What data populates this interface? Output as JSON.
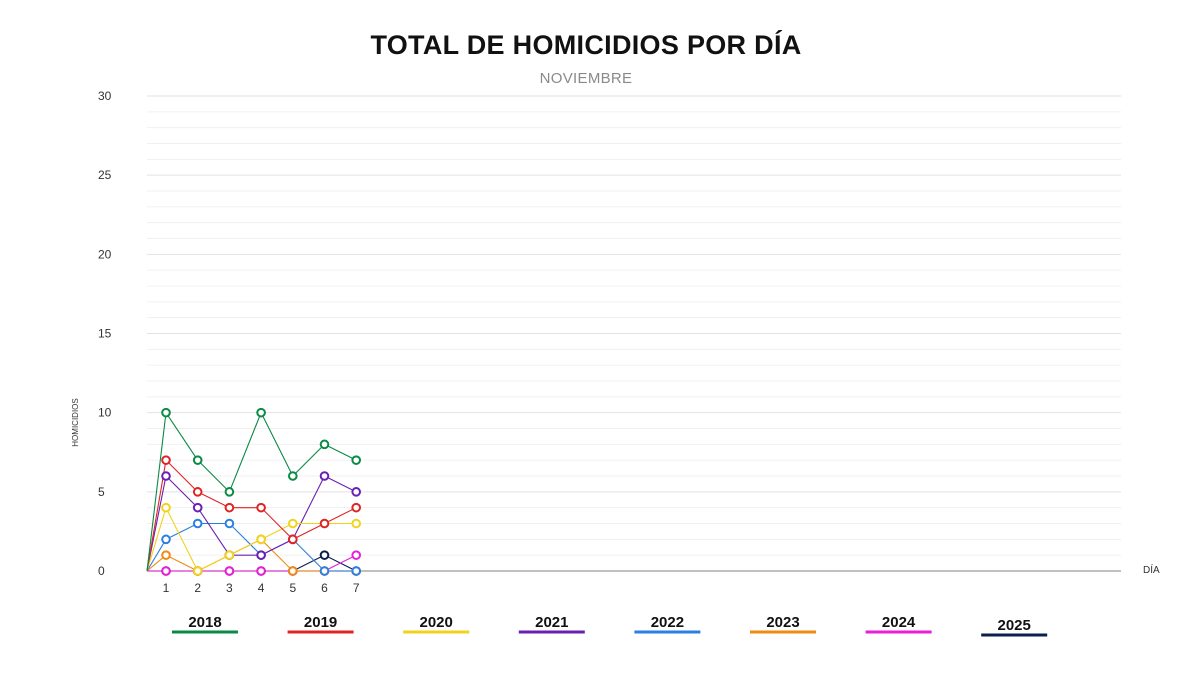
{
  "chart_data": {
    "type": "line",
    "title": "TOTAL DE HOMICIDIOS POR DÍA",
    "subtitle": "NOVIEMBRE",
    "xlabel": "DÍA",
    "ylabel": "HOMICIDIOS",
    "x": [
      1,
      2,
      3,
      4,
      5,
      6,
      7
    ],
    "ylim": [
      0,
      30
    ],
    "yticks": [
      0,
      5,
      10,
      15,
      20,
      25,
      30
    ],
    "grid": true,
    "legend_position": "bottom",
    "series": [
      {
        "name": "2018",
        "color": "#0a8a44",
        "values": [
          10,
          7,
          5,
          10,
          6,
          8,
          7
        ]
      },
      {
        "name": "2019",
        "color": "#e02424",
        "values": [
          7,
          5,
          4,
          4,
          2,
          3,
          4
        ]
      },
      {
        "name": "2020",
        "color": "#f0d31a",
        "values": [
          4,
          0,
          1,
          2,
          3,
          3,
          3
        ]
      },
      {
        "name": "2021",
        "color": "#6a1fb3",
        "values": [
          6,
          4,
          1,
          1,
          2,
          6,
          5
        ]
      },
      {
        "name": "2022",
        "color": "#2b7fe0",
        "values": [
          2,
          3,
          3,
          1,
          2,
          0,
          0
        ]
      },
      {
        "name": "2023",
        "color": "#f08a12",
        "values": [
          1,
          0,
          1,
          2,
          0,
          0,
          0
        ]
      },
      {
        "name": "2024",
        "color": "#e81ed8",
        "values": [
          0,
          0,
          0,
          0,
          0,
          0,
          1
        ]
      },
      {
        "name": "2025",
        "color": "#0b1f4d",
        "values": [
          0,
          0,
          0,
          0,
          0,
          1,
          0
        ]
      }
    ]
  }
}
